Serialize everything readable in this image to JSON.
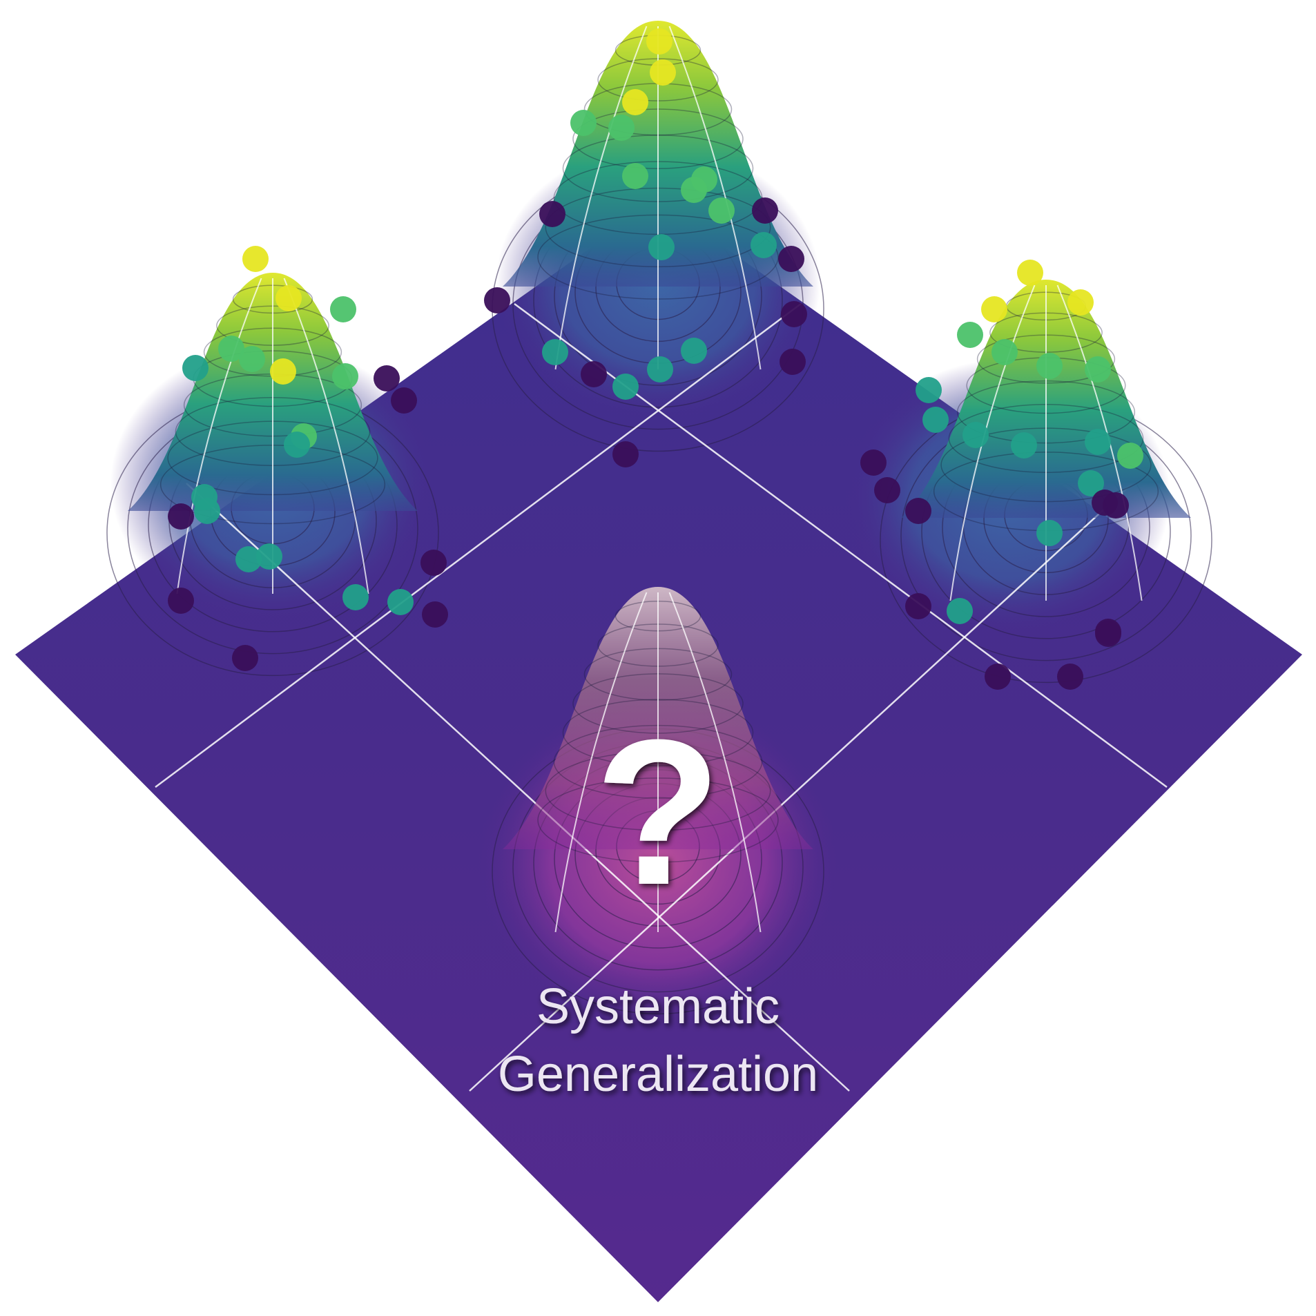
{
  "caption": {
    "line1": "Systematic",
    "line2": "Generalization"
  },
  "unknown_mark": "?",
  "palette": {
    "surface_base": "#4a2b8a",
    "surface_edge": "#5a3a98",
    "peak_low": "#3b5a9a",
    "peak_mid": "#2a9a8a",
    "peak_high": "#d6e23a",
    "unknown_peak": "#c04a9a",
    "grid_line": "#ffffff",
    "contour_line": "#2a1f4a",
    "point_dark": "#3a0f5a",
    "point_teal": "#22a08a",
    "point_green": "#4cc26a",
    "point_yellow": "#e6e622"
  },
  "peaks": [
    {
      "id": "left",
      "known": true,
      "level": 1.0
    },
    {
      "id": "top",
      "known": true,
      "level": 1.0
    },
    {
      "id": "right",
      "known": true,
      "level": 1.0
    },
    {
      "id": "bottom",
      "known": false,
      "level": 1.0
    }
  ]
}
